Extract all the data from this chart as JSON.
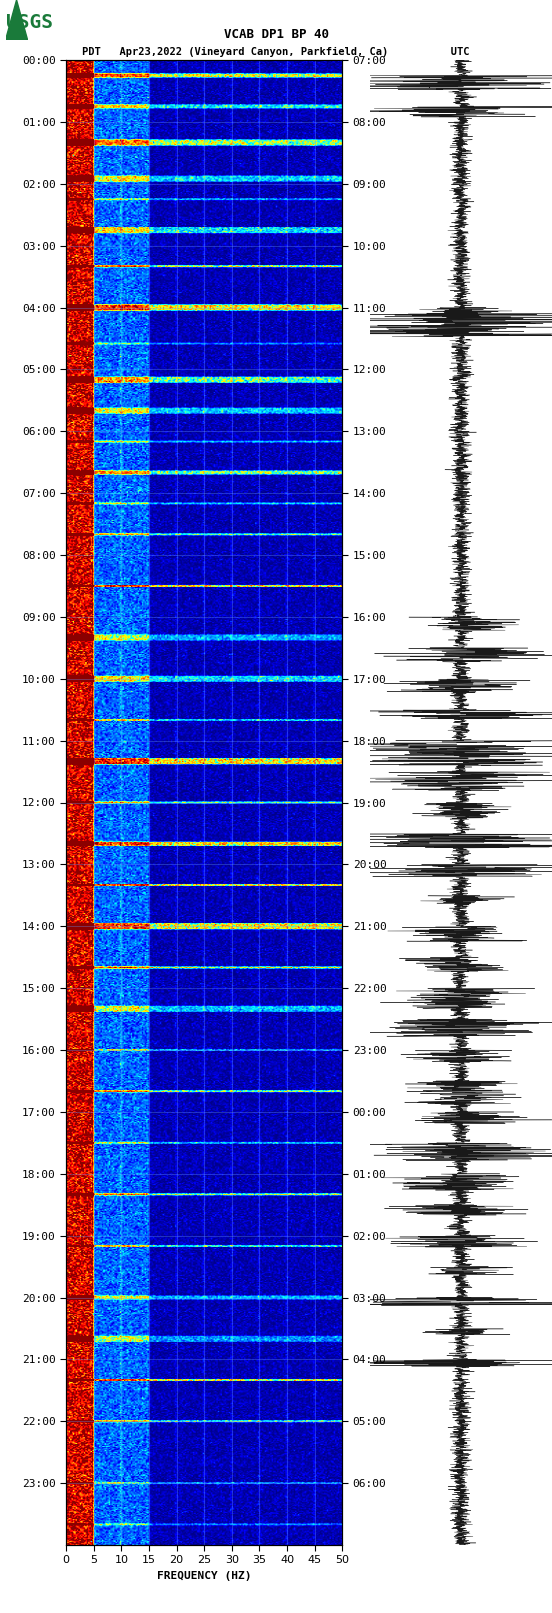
{
  "title_line1": "VCAB DP1 BP 40",
  "title_line2": "PDT   Apr23,2022 (Vineyard Canyon, Parkfield, Ca)          UTC",
  "xlabel": "FREQUENCY (HZ)",
  "freq_ticks": [
    0,
    5,
    10,
    15,
    20,
    25,
    30,
    35,
    40,
    45,
    50
  ],
  "left_times": [
    "00:00",
    "01:00",
    "02:00",
    "03:00",
    "04:00",
    "05:00",
    "06:00",
    "07:00",
    "08:00",
    "09:00",
    "10:00",
    "11:00",
    "12:00",
    "13:00",
    "14:00",
    "15:00",
    "16:00",
    "17:00",
    "18:00",
    "19:00",
    "20:00",
    "21:00",
    "22:00",
    "23:00"
  ],
  "right_times": [
    "07:00",
    "08:00",
    "09:00",
    "10:00",
    "11:00",
    "12:00",
    "13:00",
    "14:00",
    "15:00",
    "16:00",
    "17:00",
    "18:00",
    "19:00",
    "20:00",
    "21:00",
    "22:00",
    "23:00",
    "00:00",
    "01:00",
    "02:00",
    "03:00",
    "04:00",
    "05:00",
    "06:00"
  ],
  "bg_color": "#ffffff",
  "spectrogram_freq_min": 0,
  "spectrogram_freq_max": 50,
  "spectrogram_time_hours": 24,
  "grid_color": "#6699ff",
  "waveform_color": "#000000",
  "usgs_green": "#1a7a3a",
  "font_color": "#000000",
  "title_fontsize": 9,
  "tick_fontsize": 8,
  "label_fontsize": 8
}
